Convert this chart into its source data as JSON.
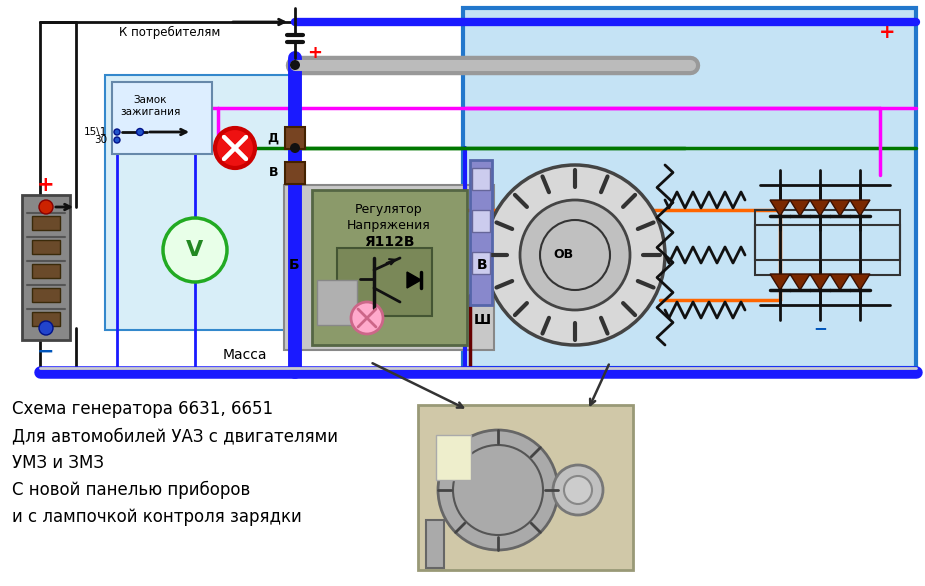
{
  "bg_color": "#ffffff",
  "circuit_bg": "#c5e3f5",
  "left_panel_bg": "#d8eef8",
  "title_lines": [
    "Схема генератора 6631, 6651",
    "Для автомобилей УАЗ с двигателями",
    "УМЗ и ЗМЗ",
    "С новой панелью приборов",
    "и с лампочкой контроля зарядки"
  ],
  "plus_red": "#ff0000",
  "minus_blue": "#0055bb",
  "wire_blue": "#1a1aff",
  "wire_blue2": "#0000cc",
  "wire_green": "#007700",
  "wire_pink": "#ff00ff",
  "wire_orange": "#ff6600",
  "wire_dark_red": "#aa0000",
  "wire_brown": "#660000",
  "wire_gray": "#888888",
  "wire_black": "#111111",
  "battery_gray": "#909090",
  "diode_brown": "#7a2800",
  "reg_bg": "#8b9a6a",
  "reg_border": "#556644",
  "reg_inner": "#a0a878",
  "connector_purple": "#8888cc",
  "lock_bg": "#ddeeff"
}
